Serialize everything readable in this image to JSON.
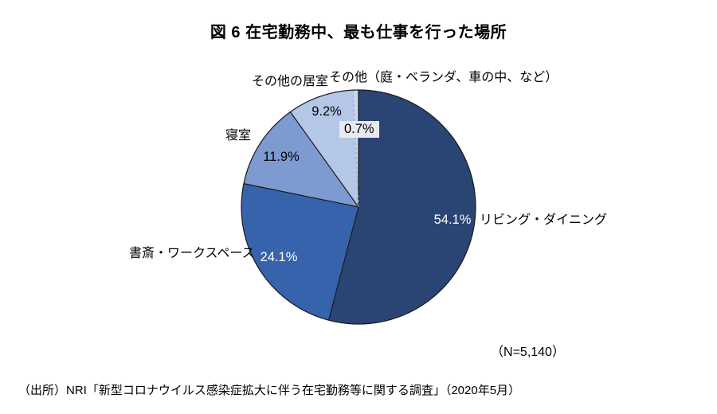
{
  "title": "図 6 在宅勤務中、最も仕事を行った場所",
  "chart_data": {
    "type": "pie",
    "title": "図 6 在宅勤務中、最も仕事を行った場所",
    "labels": [
      "リビング・ダイニング",
      "書斎・ワークスペース",
      "寝室",
      "その他の居室",
      "その他（庭・ベランダ、車の中、など）"
    ],
    "values": [
      54.1,
      24.1,
      11.9,
      9.2,
      0.7
    ],
    "value_labels": [
      "54.1%",
      "24.1%",
      "11.9%",
      "9.2%",
      "0.7%"
    ],
    "colors": [
      "#2A4573",
      "#3763AC",
      "#7D9AD1",
      "#B4C7E7",
      "#CBD7EF"
    ],
    "start_angle_deg": 0,
    "direction": "clockwise",
    "stroke_color": "#1a1a1a",
    "dashed_divider_color": "#9FACCB",
    "n_label": "（N=5,140）"
  },
  "footer": {
    "source": "（出所）NRI「新型コロナウイルス感染症拡大に伴う在宅勤務等に関する調査」（2020年5月）"
  }
}
